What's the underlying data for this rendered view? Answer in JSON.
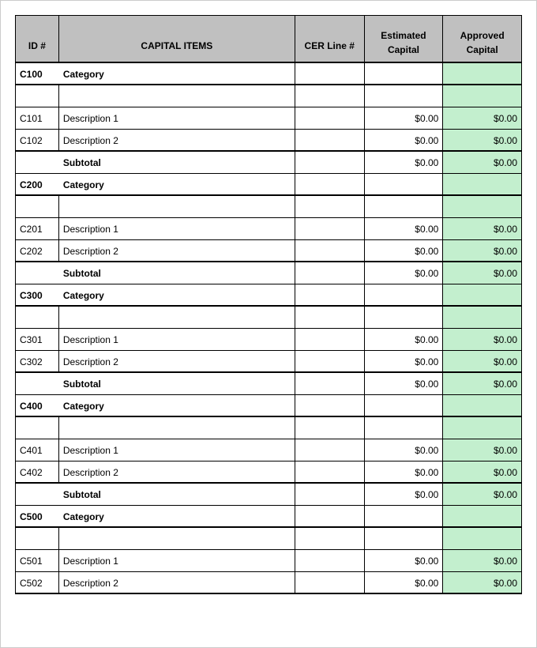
{
  "columns": {
    "id": "ID #",
    "items": "CAPITAL ITEMS",
    "cer": "CER Line #",
    "estimated_top": "Estimated",
    "estimated_bot": "Capital",
    "approved_top": "Approved",
    "approved_bot": "Capital"
  },
  "colors": {
    "header_bg": "#c0c0c0",
    "approved_bg": "#c3efce",
    "border": "#000000"
  },
  "categories": [
    {
      "id": "C100",
      "label": "Category",
      "items": [
        {
          "id": "C101",
          "desc": "Description 1",
          "estimated": "$0.00",
          "approved": "$0.00"
        },
        {
          "id": "C102",
          "desc": "Description 2",
          "estimated": "$0.00",
          "approved": "$0.00"
        }
      ],
      "subtotal": {
        "label": "Subtotal",
        "estimated": "$0.00",
        "approved": "$0.00"
      }
    },
    {
      "id": "C200",
      "label": "Category",
      "items": [
        {
          "id": "C201",
          "desc": "Description 1",
          "estimated": "$0.00",
          "approved": "$0.00"
        },
        {
          "id": "C202",
          "desc": "Description 2",
          "estimated": "$0.00",
          "approved": "$0.00"
        }
      ],
      "subtotal": {
        "label": "Subtotal",
        "estimated": "$0.00",
        "approved": "$0.00"
      }
    },
    {
      "id": "C300",
      "label": "Category",
      "items": [
        {
          "id": "C301",
          "desc": "Description 1",
          "estimated": "$0.00",
          "approved": "$0.00"
        },
        {
          "id": "C302",
          "desc": "Description 2",
          "estimated": "$0.00",
          "approved": "$0.00"
        }
      ],
      "subtotal": {
        "label": "Subtotal",
        "estimated": "$0.00",
        "approved": "$0.00"
      }
    },
    {
      "id": "C400",
      "label": "Category",
      "items": [
        {
          "id": "C401",
          "desc": "Description 1",
          "estimated": "$0.00",
          "approved": "$0.00"
        },
        {
          "id": "C402",
          "desc": "Description 2",
          "estimated": "$0.00",
          "approved": "$0.00"
        }
      ],
      "subtotal": {
        "label": "Subtotal",
        "estimated": "$0.00",
        "approved": "$0.00"
      }
    },
    {
      "id": "C500",
      "label": "Category",
      "items": [
        {
          "id": "C501",
          "desc": "Description 1",
          "estimated": "$0.00",
          "approved": "$0.00"
        },
        {
          "id": "C502",
          "desc": "Description 2",
          "estimated": "$0.00",
          "approved": "$0.00"
        }
      ]
    }
  ]
}
